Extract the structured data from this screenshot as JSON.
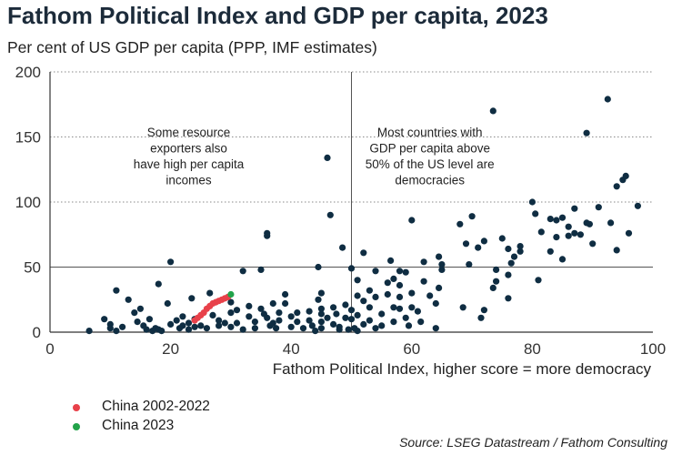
{
  "title": "Fathom Political Index and GDP per capita, 2023",
  "subtitle": "Per cent of US GDP per capita (PPP, IMF estimates)",
  "source": "Source: LSEG Datastream / Fathom Consulting",
  "colors": {
    "countries": "#0f2d42",
    "china_history": "#e8414a",
    "china_2023": "#22a34a"
  },
  "chart_data": {
    "type": "scatter",
    "title": "Fathom Political Index and GDP per capita, 2023",
    "subtitle": "Per cent of US GDP per capita (PPP, IMF estimates)",
    "xlabel": "Fathom Political Index, higher score = more democracy",
    "ylabel": "",
    "xlim": [
      0,
      100
    ],
    "ylim": [
      0,
      200
    ],
    "x_ticks": [
      "0",
      "20",
      "40",
      "60",
      "80",
      "100"
    ],
    "y_ticks": [
      "0",
      "50",
      "100",
      "150",
      "200"
    ],
    "grid": "horizontal dotted",
    "reference_lines": [
      {
        "axis": "x",
        "value": 50
      },
      {
        "axis": "y",
        "value": 50
      }
    ],
    "annotations": [
      {
        "lines": [
          "Some resource",
          "exporters also",
          "have high per capita",
          "incomes"
        ],
        "x": 23,
        "y": 153
      },
      {
        "lines": [
          "Most countries with",
          "GDP per capita above",
          "50% of the US level are",
          "democracies"
        ],
        "x": 63,
        "y": 153
      }
    ],
    "legend": {
      "position": "bottom-left",
      "entries": [
        "China 2002-2022",
        "China 2023"
      ]
    },
    "series": [
      {
        "name": "",
        "role": "countries",
        "points": [
          [
            6.5,
            1
          ],
          [
            9,
            10
          ],
          [
            10,
            6
          ],
          [
            10,
            3
          ],
          [
            11,
            32
          ],
          [
            11,
            1
          ],
          [
            12,
            4
          ],
          [
            13,
            25
          ],
          [
            14,
            15
          ],
          [
            14.5,
            8
          ],
          [
            15,
            18
          ],
          [
            15.5,
            5
          ],
          [
            16,
            2
          ],
          [
            16.5,
            10
          ],
          [
            17,
            1
          ],
          [
            17.5,
            3
          ],
          [
            18,
            2
          ],
          [
            18,
            37
          ],
          [
            18.5,
            1
          ],
          [
            19.5,
            22
          ],
          [
            20,
            54
          ],
          [
            20,
            6
          ],
          [
            21,
            9
          ],
          [
            21.5,
            3
          ],
          [
            22,
            12
          ],
          [
            22,
            5
          ],
          [
            23,
            7
          ],
          [
            23,
            2
          ],
          [
            23.5,
            26
          ],
          [
            24,
            10
          ],
          [
            24,
            4
          ],
          [
            25,
            5
          ],
          [
            26,
            3
          ],
          [
            26.5,
            30
          ],
          [
            27,
            13
          ],
          [
            28,
            9
          ],
          [
            28,
            5
          ],
          [
            29,
            7
          ],
          [
            30,
            23
          ],
          [
            30,
            15
          ],
          [
            30,
            4
          ],
          [
            31,
            17
          ],
          [
            31,
            7
          ],
          [
            32,
            47
          ],
          [
            32,
            2
          ],
          [
            33,
            20
          ],
          [
            33,
            12
          ],
          [
            34,
            8
          ],
          [
            34,
            3
          ],
          [
            35,
            48
          ],
          [
            35,
            18
          ],
          [
            35.5,
            14
          ],
          [
            36,
            76
          ],
          [
            36,
            74
          ],
          [
            36,
            11
          ],
          [
            36.5,
            5
          ],
          [
            37,
            22
          ],
          [
            37,
            7
          ],
          [
            37.5,
            3
          ],
          [
            38,
            15
          ],
          [
            38,
            9
          ],
          [
            39,
            29
          ],
          [
            39,
            22
          ],
          [
            40,
            12
          ],
          [
            40,
            4
          ],
          [
            41,
            15
          ],
          [
            41,
            8
          ],
          [
            42,
            3
          ],
          [
            43,
            16
          ],
          [
            43,
            9
          ],
          [
            43.5,
            5
          ],
          [
            44,
            1
          ],
          [
            44.5,
            50
          ],
          [
            44.5,
            25
          ],
          [
            45,
            30
          ],
          [
            45,
            18
          ],
          [
            45,
            14
          ],
          [
            45,
            8
          ],
          [
            45,
            3
          ],
          [
            46,
            134
          ],
          [
            46,
            11
          ],
          [
            46.5,
            90
          ],
          [
            47,
            19
          ],
          [
            47,
            6
          ],
          [
            47.5,
            14
          ],
          [
            48,
            4
          ],
          [
            48,
            2
          ],
          [
            48.5,
            65
          ],
          [
            49,
            21
          ],
          [
            49,
            11
          ],
          [
            49.5,
            2
          ],
          [
            50,
            49
          ],
          [
            50,
            17
          ],
          [
            50,
            10
          ],
          [
            50.5,
            3
          ],
          [
            51,
            40
          ],
          [
            51,
            28
          ],
          [
            51,
            13
          ],
          [
            51,
            1
          ],
          [
            52,
            61
          ],
          [
            52,
            24
          ],
          [
            52,
            6
          ],
          [
            53,
            32
          ],
          [
            53,
            19
          ],
          [
            53,
            9
          ],
          [
            54,
            47
          ],
          [
            54,
            27
          ],
          [
            54,
            3
          ],
          [
            55,
            14
          ],
          [
            55,
            5
          ],
          [
            56,
            38
          ],
          [
            56,
            29
          ],
          [
            56.5,
            55
          ],
          [
            57,
            41
          ],
          [
            57,
            19
          ],
          [
            57,
            8
          ],
          [
            58,
            36
          ],
          [
            58,
            47
          ],
          [
            58,
            27
          ],
          [
            58,
            18
          ],
          [
            59,
            46
          ],
          [
            59,
            11
          ],
          [
            59.5,
            5
          ],
          [
            60,
            86
          ],
          [
            60,
            30
          ],
          [
            60,
            19
          ],
          [
            61,
            16
          ],
          [
            61.5,
            8
          ],
          [
            62,
            54
          ],
          [
            62,
            39
          ],
          [
            63,
            28
          ],
          [
            64,
            22
          ],
          [
            64,
            3
          ],
          [
            64.5,
            58
          ],
          [
            64.5,
            34
          ],
          [
            65,
            52
          ],
          [
            65,
            48
          ],
          [
            68,
            83
          ],
          [
            68.5,
            19
          ],
          [
            69,
            68
          ],
          [
            69.5,
            52
          ],
          [
            70,
            89
          ],
          [
            71,
            65
          ],
          [
            71.5,
            11
          ],
          [
            72,
            70
          ],
          [
            72,
            17
          ],
          [
            73.5,
            170
          ],
          [
            73.5,
            34
          ],
          [
            74,
            48
          ],
          [
            74,
            39
          ],
          [
            75,
            72
          ],
          [
            76,
            64
          ],
          [
            76,
            44
          ],
          [
            76,
            26
          ],
          [
            76.5,
            53
          ],
          [
            77,
            58
          ],
          [
            78,
            62
          ],
          [
            78,
            66
          ],
          [
            80,
            100
          ],
          [
            80.5,
            91
          ],
          [
            81,
            40
          ],
          [
            81.5,
            77
          ],
          [
            83,
            87
          ],
          [
            83,
            62
          ],
          [
            84,
            86
          ],
          [
            84,
            73
          ],
          [
            85,
            88
          ],
          [
            85,
            56
          ],
          [
            86,
            81
          ],
          [
            86,
            74
          ],
          [
            87,
            76
          ],
          [
            87,
            95
          ],
          [
            88,
            75
          ],
          [
            89,
            84
          ],
          [
            89,
            153
          ],
          [
            89.5,
            83
          ],
          [
            90,
            68
          ],
          [
            91,
            96
          ],
          [
            92.5,
            179
          ],
          [
            93,
            84
          ],
          [
            94,
            63
          ],
          [
            94,
            112
          ],
          [
            95,
            117
          ],
          [
            95.5,
            120
          ],
          [
            96,
            76
          ],
          [
            97.5,
            97
          ]
        ]
      },
      {
        "name": "China 2002-2022",
        "role": "china_history",
        "points": [
          [
            24,
            9
          ],
          [
            24.5,
            11
          ],
          [
            25,
            13
          ],
          [
            25.5,
            15
          ],
          [
            26,
            18
          ],
          [
            26.5,
            20
          ],
          [
            27,
            22
          ],
          [
            27.5,
            23
          ],
          [
            28,
            24
          ],
          [
            28.5,
            25
          ],
          [
            29,
            26
          ],
          [
            29.5,
            27
          ]
        ]
      },
      {
        "name": "China 2023",
        "role": "china_2023",
        "points": [
          [
            30,
            29
          ]
        ]
      }
    ]
  }
}
